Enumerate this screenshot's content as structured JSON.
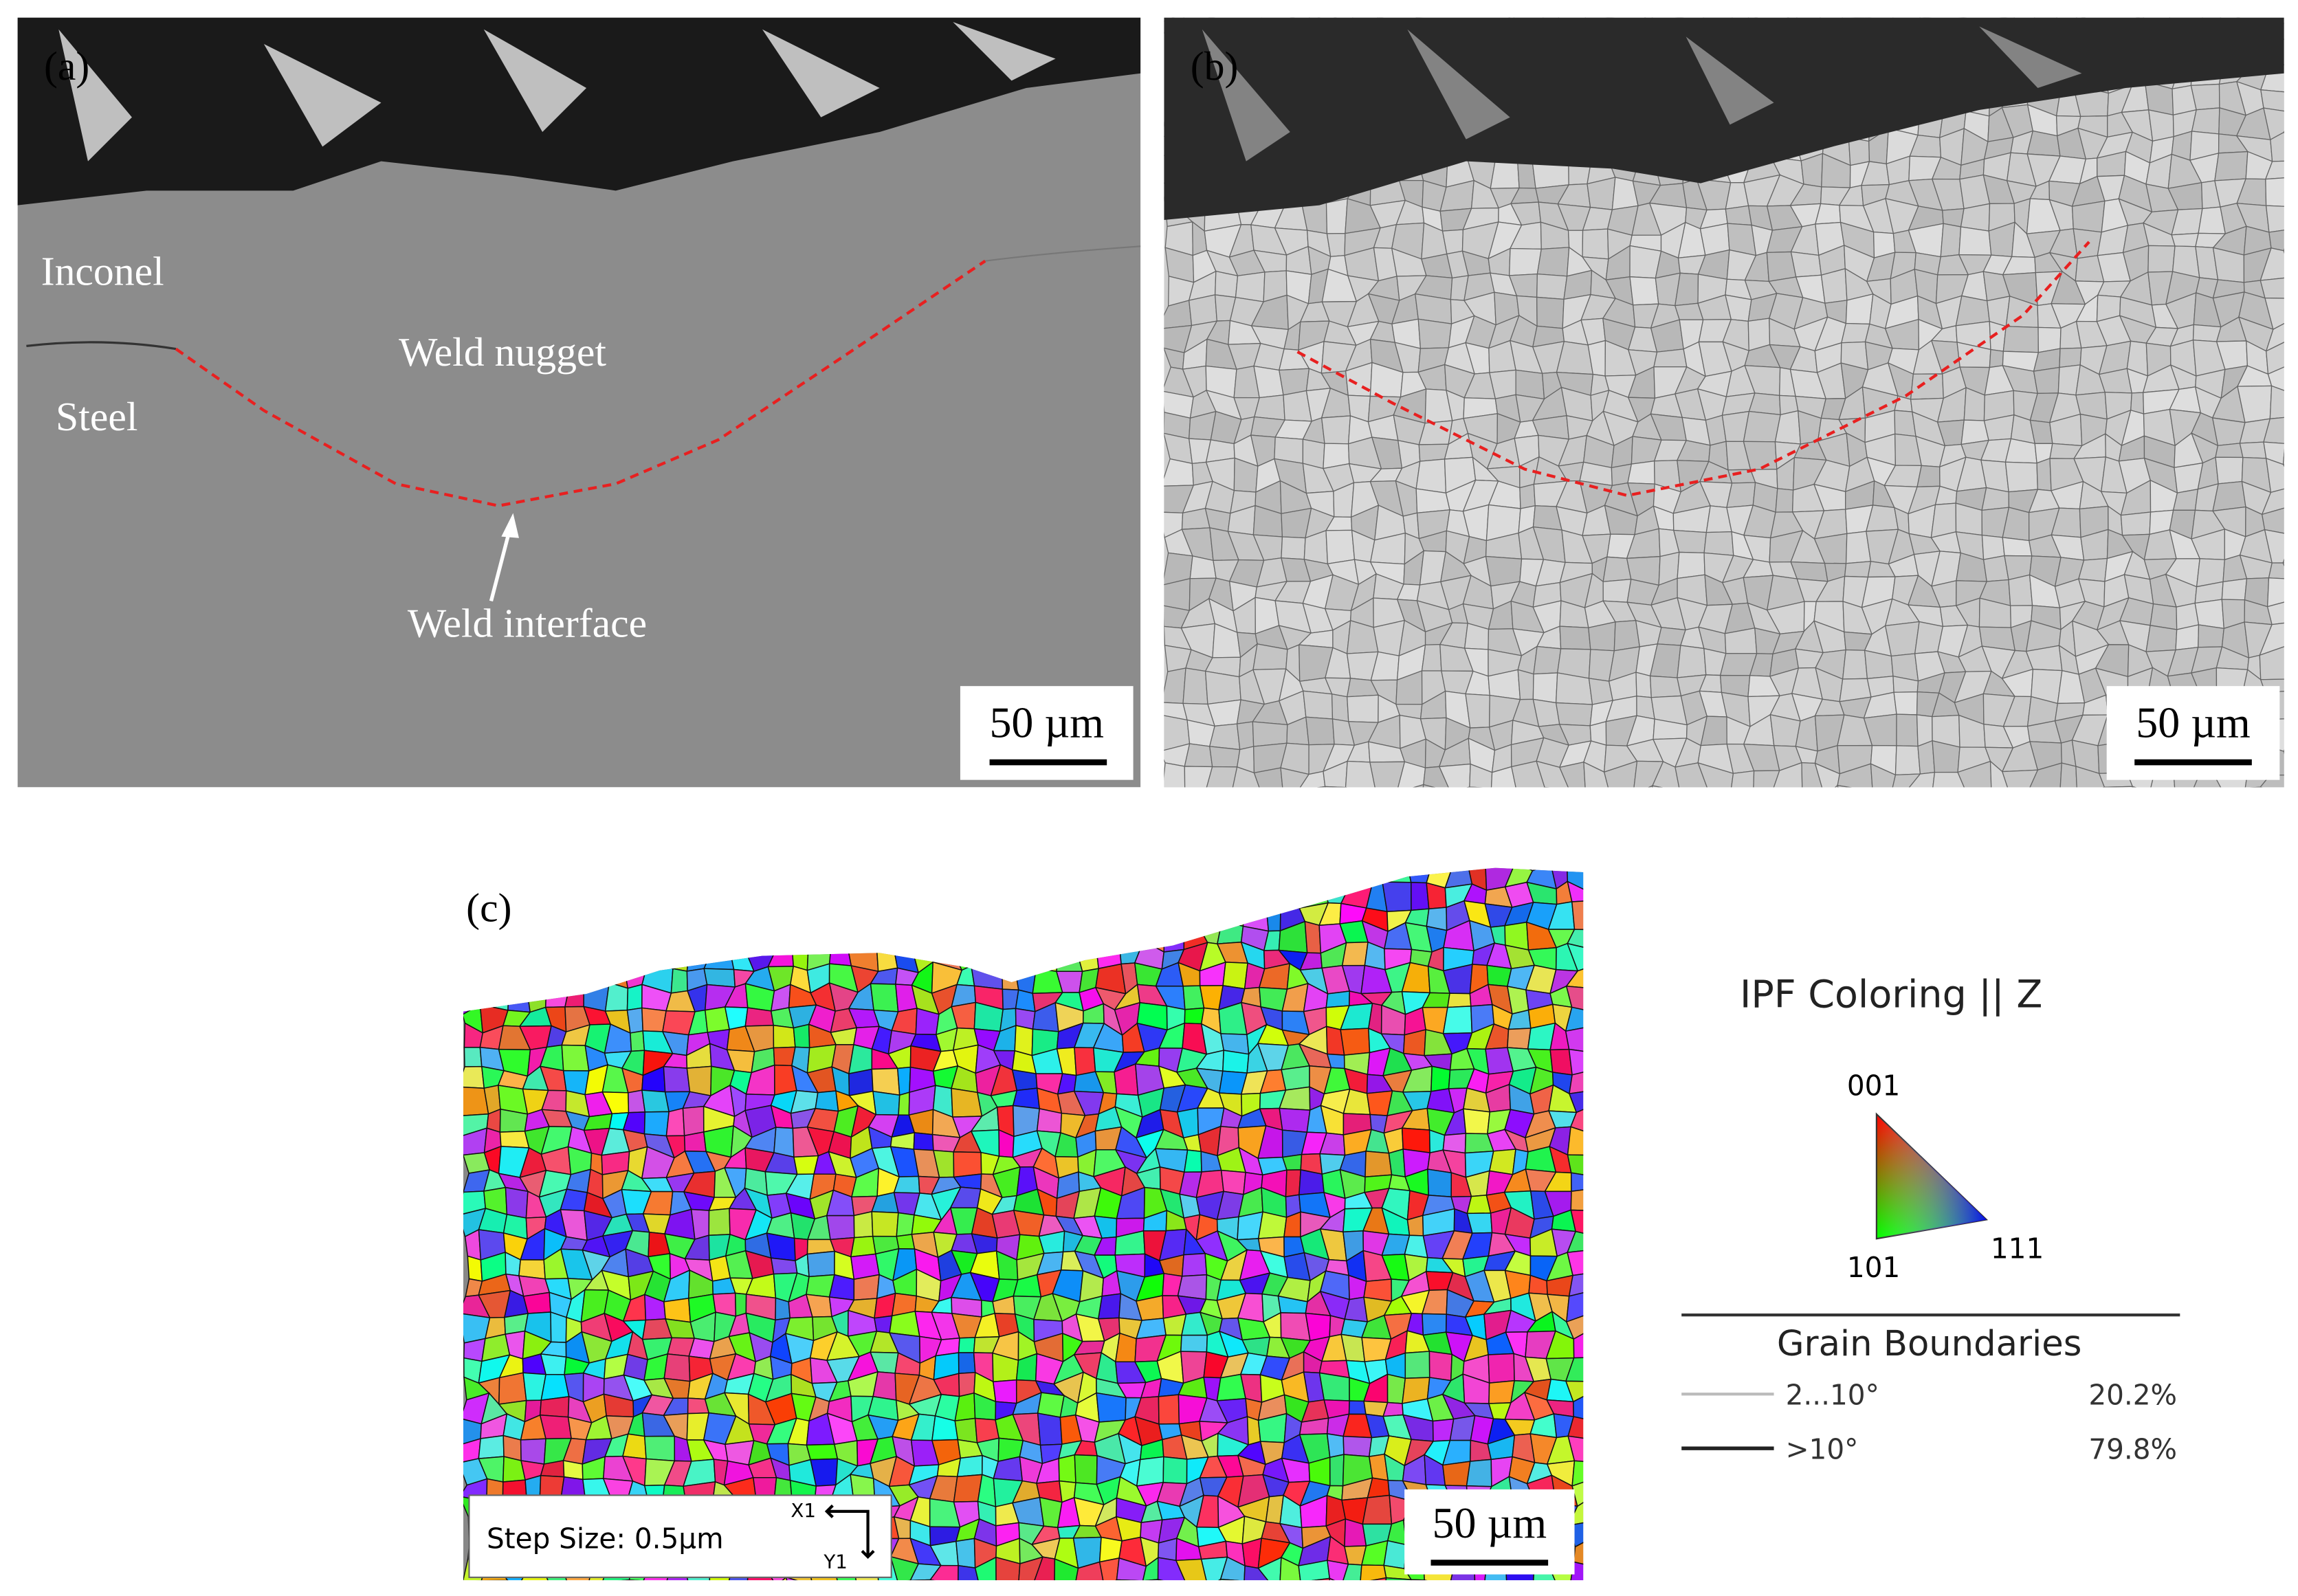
{
  "panels": [
    {
      "label": "(a)",
      "annotations": [
        "Inconel",
        "Weld nugget",
        "Steel",
        "Weld interface"
      ],
      "scale_bar": "50 µm"
    },
    {
      "label": "(b)",
      "scale_bar": "50 µm"
    },
    {
      "label": "(c)",
      "scale_bar": "50 µm",
      "step_size": "Step Size: 0.5µm",
      "axes": [
        "X1",
        "Y1"
      ]
    }
  ],
  "legend": {
    "title": "IPF Coloring || Z",
    "poles": [
      "001",
      "101",
      "111"
    ],
    "grain_boundaries": {
      "title": "Grain Boundaries",
      "rows": [
        {
          "range": "2...10°",
          "fraction": "20.2%"
        },
        {
          "range": ">10°",
          "fraction": "79.8%"
        }
      ]
    }
  }
}
